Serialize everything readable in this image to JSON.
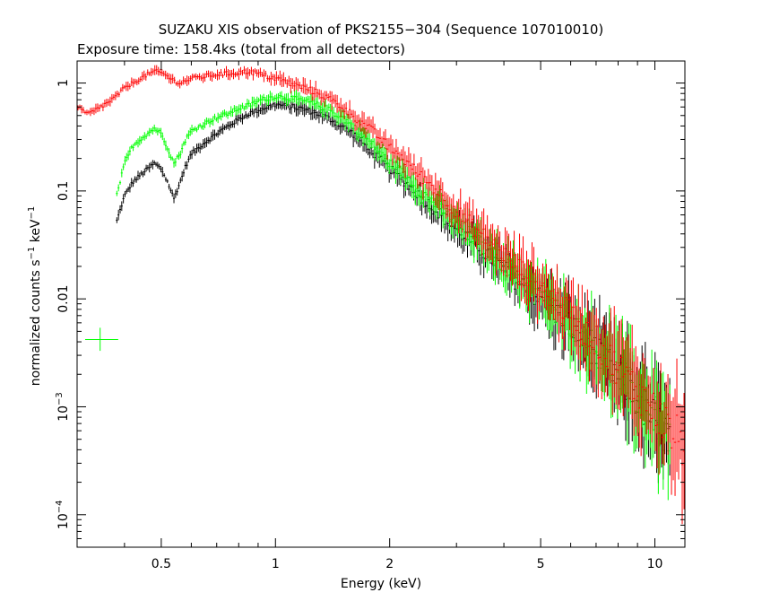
{
  "chart_data": {
    "type": "scatter",
    "title": "SUZAKU XIS observation of PKS2155−304 (Sequence 107010010)",
    "subtitle": "Exposure time: 158.4ks (total from all detectors)",
    "xlabel": "Energy (keV)",
    "ylabel": {
      "parts": [
        "normalized counts s",
        "−1",
        " keV",
        "−1"
      ]
    },
    "xscale": "log",
    "yscale": "log",
    "xlim": [
      0.3,
      12
    ],
    "ylim": [
      5e-05,
      1.6
    ],
    "xticks": [
      {
        "value": 0.5,
        "label": "0.5"
      },
      {
        "value": 1,
        "label": "1"
      },
      {
        "value": 2,
        "label": "2"
      },
      {
        "value": 5,
        "label": "5"
      },
      {
        "value": 10,
        "label": "10"
      }
    ],
    "yticks": [
      {
        "value": 1,
        "base": "1",
        "exp": ""
      },
      {
        "value": 0.1,
        "base": "0.1",
        "exp": ""
      },
      {
        "value": 0.01,
        "base": "0.01",
        "exp": ""
      },
      {
        "value": 0.001,
        "base": "10",
        "exp": "−3"
      },
      {
        "value": 0.0001,
        "base": "10",
        "exp": "−4"
      }
    ],
    "series": [
      {
        "color": "#ff0000",
        "points": [
          [
            0.3,
            0.6
          ],
          [
            0.31,
            0.55
          ],
          [
            0.32,
            0.52
          ],
          [
            0.33,
            0.54
          ],
          [
            0.34,
            0.58
          ],
          [
            0.36,
            0.65
          ],
          [
            0.38,
            0.75
          ],
          [
            0.4,
            0.9
          ],
          [
            0.42,
            1.0
          ],
          [
            0.44,
            1.1
          ],
          [
            0.46,
            1.2
          ],
          [
            0.48,
            1.28
          ],
          [
            0.5,
            1.25
          ],
          [
            0.52,
            1.15
          ],
          [
            0.54,
            1.05
          ],
          [
            0.56,
            1.0
          ],
          [
            0.58,
            1.05
          ],
          [
            0.6,
            1.1
          ],
          [
            0.65,
            1.15
          ],
          [
            0.7,
            1.2
          ],
          [
            0.75,
            1.22
          ],
          [
            0.8,
            1.25
          ],
          [
            0.85,
            1.28
          ],
          [
            0.9,
            1.22
          ],
          [
            0.95,
            1.15
          ],
          [
            1.0,
            1.1
          ],
          [
            1.05,
            1.05
          ],
          [
            1.1,
            0.98
          ],
          [
            1.2,
            0.9
          ],
          [
            1.3,
            0.8
          ],
          [
            1.4,
            0.7
          ],
          [
            1.5,
            0.6
          ],
          [
            1.6,
            0.5
          ],
          [
            1.7,
            0.42
          ],
          [
            1.8,
            0.36
          ],
          [
            1.9,
            0.3
          ],
          [
            2.0,
            0.25
          ],
          [
            2.1,
            0.22
          ],
          [
            2.2,
            0.19
          ],
          [
            2.4,
            0.14
          ],
          [
            2.6,
            0.11
          ],
          [
            2.8,
            0.085
          ],
          [
            3.0,
            0.065
          ],
          [
            3.3,
            0.048
          ],
          [
            3.6,
            0.036
          ],
          [
            4.0,
            0.026
          ],
          [
            4.5,
            0.018
          ],
          [
            5.0,
            0.013
          ],
          [
            5.5,
            0.0095
          ],
          [
            6.0,
            0.007
          ],
          [
            6.5,
            0.0052
          ],
          [
            7.0,
            0.004
          ],
          [
            7.5,
            0.003
          ],
          [
            8.0,
            0.0023
          ],
          [
            8.5,
            0.0018
          ],
          [
            9.0,
            0.0014
          ],
          [
            9.5,
            0.0011
          ],
          [
            10.0,
            0.0009
          ],
          [
            10.5,
            0.00075
          ],
          [
            11.0,
            0.0006
          ],
          [
            11.5,
            0.0005
          ],
          [
            12.0,
            0.0004
          ]
        ]
      },
      {
        "color": "#00ff00",
        "points": [
          [
            0.38,
            0.085
          ],
          [
            0.4,
            0.18
          ],
          [
            0.42,
            0.26
          ],
          [
            0.44,
            0.3
          ],
          [
            0.46,
            0.34
          ],
          [
            0.48,
            0.38
          ],
          [
            0.5,
            0.34
          ],
          [
            0.52,
            0.25
          ],
          [
            0.54,
            0.18
          ],
          [
            0.56,
            0.22
          ],
          [
            0.58,
            0.3
          ],
          [
            0.6,
            0.36
          ],
          [
            0.65,
            0.42
          ],
          [
            0.7,
            0.48
          ],
          [
            0.75,
            0.52
          ],
          [
            0.8,
            0.58
          ],
          [
            0.85,
            0.62
          ],
          [
            0.9,
            0.68
          ],
          [
            0.95,
            0.72
          ],
          [
            1.0,
            0.75
          ],
          [
            1.05,
            0.74
          ],
          [
            1.1,
            0.72
          ],
          [
            1.2,
            0.68
          ],
          [
            1.3,
            0.62
          ],
          [
            1.4,
            0.55
          ],
          [
            1.5,
            0.48
          ],
          [
            1.6,
            0.4
          ],
          [
            1.7,
            0.33
          ],
          [
            1.8,
            0.27
          ],
          [
            1.9,
            0.22
          ],
          [
            2.0,
            0.18
          ],
          [
            2.1,
            0.16
          ],
          [
            2.2,
            0.14
          ],
          [
            2.4,
            0.1
          ],
          [
            2.6,
            0.08
          ],
          [
            2.8,
            0.063
          ],
          [
            3.0,
            0.05
          ],
          [
            3.3,
            0.038
          ],
          [
            3.6,
            0.029
          ],
          [
            4.0,
            0.021
          ],
          [
            4.5,
            0.015
          ],
          [
            5.0,
            0.011
          ],
          [
            5.5,
            0.008
          ],
          [
            6.0,
            0.006
          ],
          [
            6.5,
            0.0045
          ],
          [
            7.0,
            0.0034
          ],
          [
            7.5,
            0.0026
          ],
          [
            8.0,
            0.002
          ],
          [
            8.5,
            0.0016
          ],
          [
            9.0,
            0.0012
          ],
          [
            9.5,
            0.001
          ],
          [
            10.0,
            0.0008
          ],
          [
            11.0,
            0.00055
          ]
        ]
      },
      {
        "color": "#000000",
        "points": [
          [
            0.38,
            0.05
          ],
          [
            0.4,
            0.09
          ],
          [
            0.42,
            0.12
          ],
          [
            0.44,
            0.14
          ],
          [
            0.46,
            0.16
          ],
          [
            0.48,
            0.18
          ],
          [
            0.5,
            0.16
          ],
          [
            0.52,
            0.12
          ],
          [
            0.54,
            0.085
          ],
          [
            0.56,
            0.12
          ],
          [
            0.58,
            0.17
          ],
          [
            0.6,
            0.22
          ],
          [
            0.65,
            0.28
          ],
          [
            0.7,
            0.34
          ],
          [
            0.75,
            0.4
          ],
          [
            0.8,
            0.46
          ],
          [
            0.85,
            0.52
          ],
          [
            0.9,
            0.56
          ],
          [
            0.95,
            0.6
          ],
          [
            1.0,
            0.63
          ],
          [
            1.05,
            0.62
          ],
          [
            1.1,
            0.6
          ],
          [
            1.2,
            0.57
          ],
          [
            1.3,
            0.52
          ],
          [
            1.4,
            0.46
          ],
          [
            1.5,
            0.4
          ],
          [
            1.6,
            0.34
          ],
          [
            1.7,
            0.28
          ],
          [
            1.8,
            0.23
          ],
          [
            1.9,
            0.19
          ],
          [
            2.0,
            0.16
          ],
          [
            2.1,
            0.14
          ],
          [
            2.2,
            0.12
          ],
          [
            2.4,
            0.09
          ],
          [
            2.6,
            0.07
          ],
          [
            2.8,
            0.055
          ],
          [
            3.0,
            0.044
          ],
          [
            3.3,
            0.034
          ],
          [
            3.6,
            0.026
          ],
          [
            4.0,
            0.019
          ],
          [
            4.5,
            0.013
          ],
          [
            5.0,
            0.01
          ],
          [
            5.5,
            0.0075
          ],
          [
            6.0,
            0.0056
          ],
          [
            6.5,
            0.0042
          ],
          [
            7.0,
            0.0032
          ],
          [
            7.5,
            0.0025
          ],
          [
            8.0,
            0.0019
          ],
          [
            8.5,
            0.0015
          ],
          [
            9.0,
            0.0012
          ],
          [
            9.5,
            0.0009
          ],
          [
            10.0,
            0.00075
          ],
          [
            11.0,
            0.0005
          ]
        ]
      }
    ],
    "isolated_marker": {
      "color": "#00ff00",
      "x": 0.345,
      "y": 0.0042,
      "xerr": [
        0.315,
        0.385
      ],
      "yerr": [
        0.0033,
        0.0054
      ]
    }
  }
}
